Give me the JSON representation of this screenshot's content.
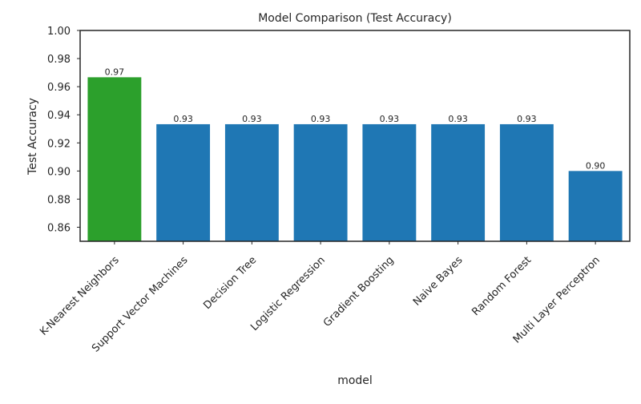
{
  "chart_data": {
    "type": "bar",
    "title": "Model Comparison (Test Accuracy)",
    "xlabel": "model",
    "ylabel": "Test Accuracy",
    "ylim": [
      0.85,
      1.0
    ],
    "yticks": [
      "0.86",
      "0.88",
      "0.90",
      "0.92",
      "0.94",
      "0.96",
      "0.98",
      "1.00"
    ],
    "ytick_values": [
      0.86,
      0.88,
      0.9,
      0.92,
      0.94,
      0.96,
      0.98,
      1.0
    ],
    "grid": false,
    "categories": [
      "K-Nearest Neighbors",
      "Support Vector Machines",
      "Decision Tree",
      "Logistic Regression",
      "Gradient Boosting",
      "Naive Bayes",
      "Random Forest",
      "Multi Layer Perceptron"
    ],
    "values": [
      0.9667,
      0.9333,
      0.9333,
      0.9333,
      0.9333,
      0.9333,
      0.9333,
      0.9
    ],
    "data_labels": [
      "0.97",
      "0.93",
      "0.93",
      "0.93",
      "0.93",
      "0.93",
      "0.93",
      "0.90"
    ],
    "colors": [
      "#2ca02c",
      "#1f77b4",
      "#1f77b4",
      "#1f77b4",
      "#1f77b4",
      "#1f77b4",
      "#1f77b4",
      "#1f77b4"
    ],
    "highlight_color": "#2ca02c",
    "bar_color": "#1f77b4",
    "frame_color": "#262626"
  }
}
